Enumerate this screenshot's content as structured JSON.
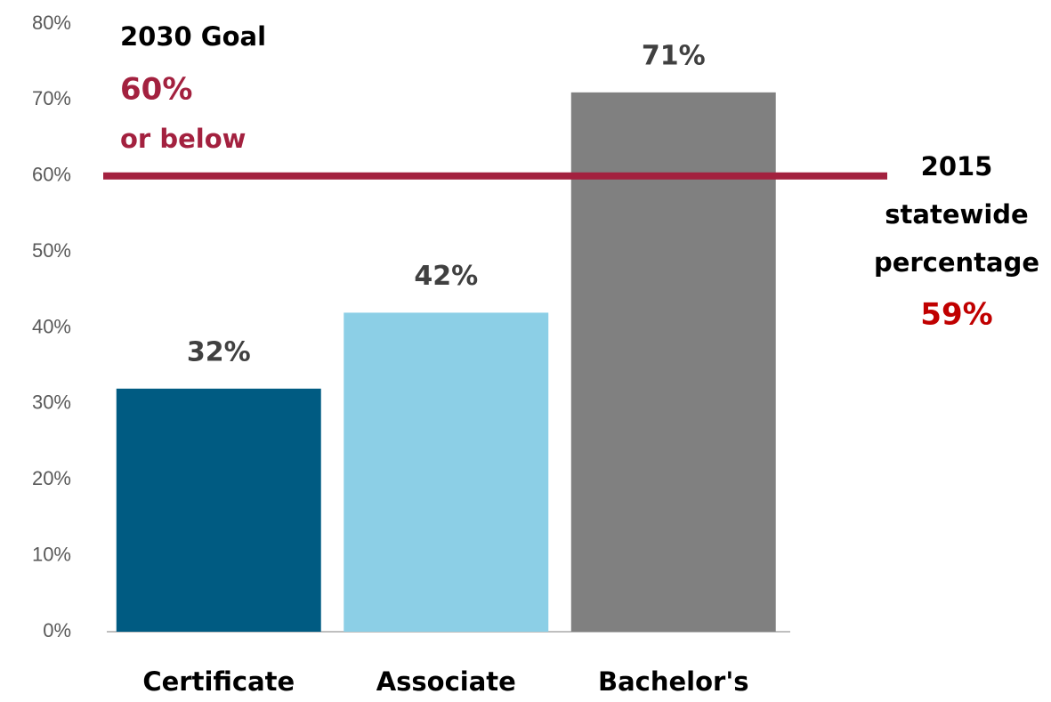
{
  "chart_data": {
    "type": "bar",
    "categories": [
      "Certificate",
      "Associate",
      "Bachelor's"
    ],
    "values": [
      32,
      42,
      71
    ],
    "value_labels": [
      "32%",
      "42%",
      "71%"
    ],
    "colors": [
      "#005b82",
      "#8ccfe6",
      "#808080"
    ],
    "ylim": [
      0,
      80
    ],
    "yticks": [
      {
        "value": 0,
        "label": "0%"
      },
      {
        "value": 10,
        "label": "10%"
      },
      {
        "value": 20,
        "label": "20%"
      },
      {
        "value": 30,
        "label": "30%"
      },
      {
        "value": 40,
        "label": "40%"
      },
      {
        "value": 50,
        "label": "50%"
      },
      {
        "value": 60,
        "label": "60%"
      },
      {
        "value": 70,
        "label": "70%"
      },
      {
        "value": 80,
        "label": "80%"
      }
    ],
    "grid": false,
    "goal": {
      "title": "2030 Goal",
      "value": 60,
      "value_label": "60%",
      "note": "or below",
      "color": "#a3213f"
    },
    "statewide": {
      "lines": [
        "2015",
        "statewide",
        "percentage"
      ],
      "value": 59,
      "value_label": "59%",
      "color": "#c00000"
    }
  }
}
